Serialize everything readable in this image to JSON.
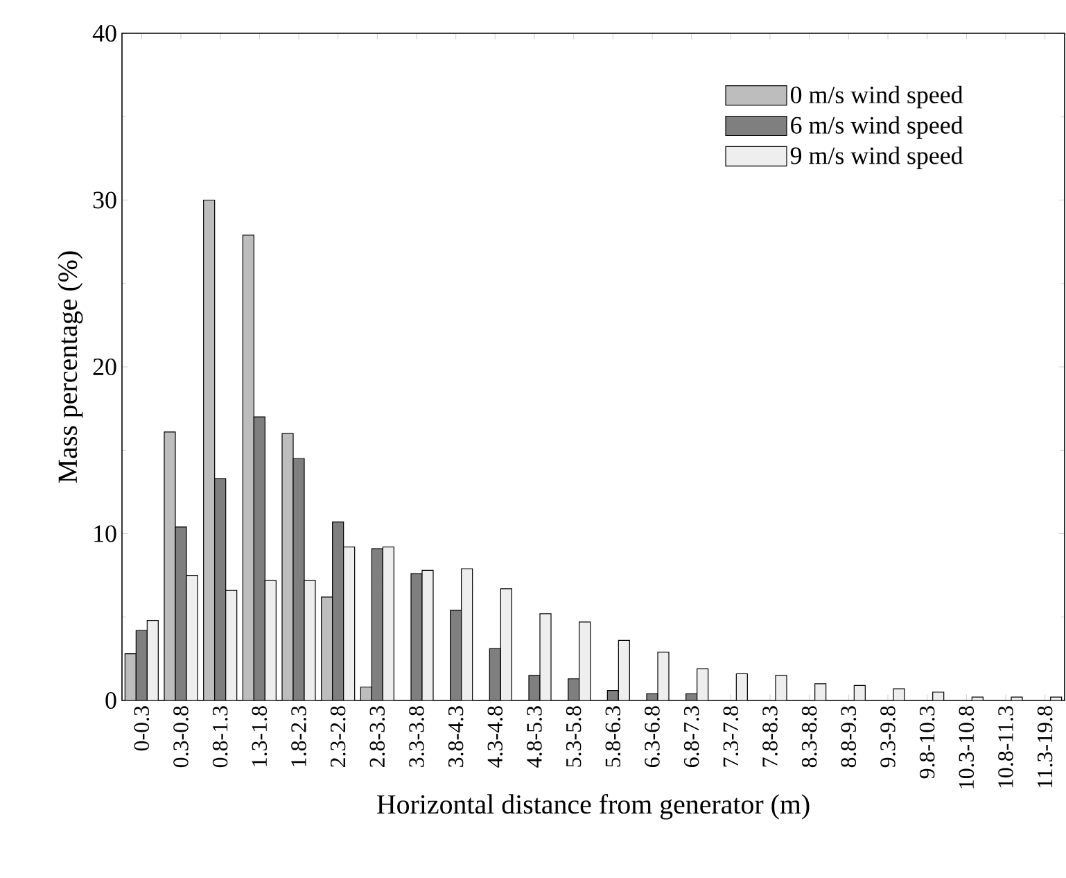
{
  "chart_data": {
    "type": "bar",
    "xlabel": "Horizontal distance from generator (m)",
    "ylabel": "Mass percentage (%)",
    "categories": [
      "0-0.3",
      "0.3-0.8",
      "0.8-1.3",
      "1.3-1.8",
      "1.8-2.3",
      "2.3-2.8",
      "2.8-3.3",
      "3.3-3.8",
      "3.8-4.3",
      "4.3-4.8",
      "4.8-5.3",
      "5.3-5.8",
      "5.8-6.3",
      "6.3-6.8",
      "6.8-7.3",
      "7.3-7.8",
      "7.8-8.3",
      "8.3-8.8",
      "8.8-9.3",
      "9.3-9.8",
      "9.8-10.3",
      "10.3-10.8",
      "10.8-11.3",
      "11.3-19.8"
    ],
    "series": [
      {
        "name": "0 m/s wind speed",
        "color": "#bdbdbd",
        "values": [
          2.8,
          16.1,
          30.0,
          27.9,
          16.0,
          6.2,
          0.8,
          null,
          null,
          null,
          null,
          null,
          null,
          null,
          null,
          null,
          null,
          null,
          null,
          null,
          null,
          null,
          null,
          null
        ]
      },
      {
        "name": "6 m/s wind speed",
        "color": "#7f7f7f",
        "values": [
          4.2,
          10.4,
          13.3,
          17.0,
          14.5,
          10.7,
          9.1,
          7.6,
          5.4,
          3.1,
          1.5,
          1.3,
          0.6,
          0.4,
          0.4,
          null,
          null,
          null,
          null,
          null,
          null,
          null,
          null,
          null
        ]
      },
      {
        "name": "9 m/s wind speed",
        "color": "#eeeeee",
        "values": [
          4.8,
          7.5,
          6.6,
          7.2,
          7.2,
          9.2,
          9.2,
          7.8,
          7.9,
          6.7,
          5.2,
          4.7,
          3.6,
          2.9,
          1.9,
          1.6,
          1.5,
          1.0,
          0.9,
          0.7,
          0.5,
          0.2,
          0.2,
          0.2
        ]
      }
    ],
    "ylim": [
      0,
      40
    ],
    "yticks": [
      0,
      10,
      20,
      30,
      40
    ],
    "legend": "top right",
    "grid": false
  }
}
